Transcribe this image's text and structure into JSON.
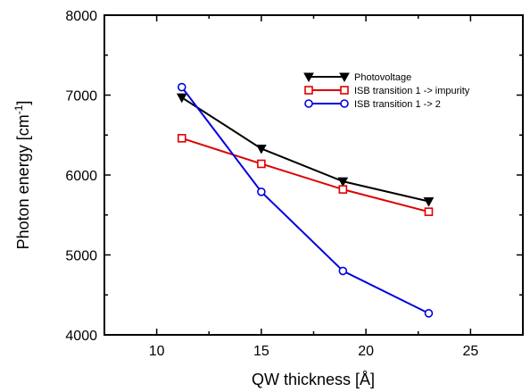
{
  "chart_data": {
    "type": "line",
    "title": "",
    "xlabel": "QW thickness [Å]",
    "ylabel_main": "Photon energy [cm",
    "ylabel_sup": "-1",
    "ylabel_end": "]",
    "xlim": [
      7.5,
      27.5
    ],
    "ylim": [
      4000,
      8000
    ],
    "x_ticks_major": [
      10,
      15,
      20,
      25
    ],
    "x_ticks_minor": [
      7.5,
      12.5,
      17.5,
      22.5,
      27.5
    ],
    "y_ticks_major": [
      4000,
      5000,
      6000,
      7000,
      8000
    ],
    "y_ticks_minor": [
      4500,
      5500,
      6500,
      7500
    ],
    "x_tick_labels": [
      "10",
      "15",
      "20",
      "25"
    ],
    "y_tick_labels": [
      "4000",
      "5000",
      "6000",
      "7000",
      "8000"
    ],
    "grid": false,
    "legend_position": "top-right",
    "series": [
      {
        "name": "Photovoltage",
        "color": "#000000",
        "marker": "triangle-down",
        "x": [
          11.2,
          15.0,
          18.9,
          23.0
        ],
        "y": [
          6970,
          6330,
          5920,
          5670
        ]
      },
      {
        "name": "ISB transition 1 -> impurity",
        "color": "#e00000",
        "marker": "square",
        "x": [
          11.2,
          15.0,
          18.9,
          23.0
        ],
        "y": [
          6460,
          6140,
          5820,
          5540
        ]
      },
      {
        "name": "ISB transition 1 -> 2",
        "color": "#0000e0",
        "marker": "circle",
        "x": [
          11.2,
          15.0,
          18.9,
          23.0
        ],
        "y": [
          7100,
          5790,
          4800,
          4270
        ]
      }
    ]
  }
}
